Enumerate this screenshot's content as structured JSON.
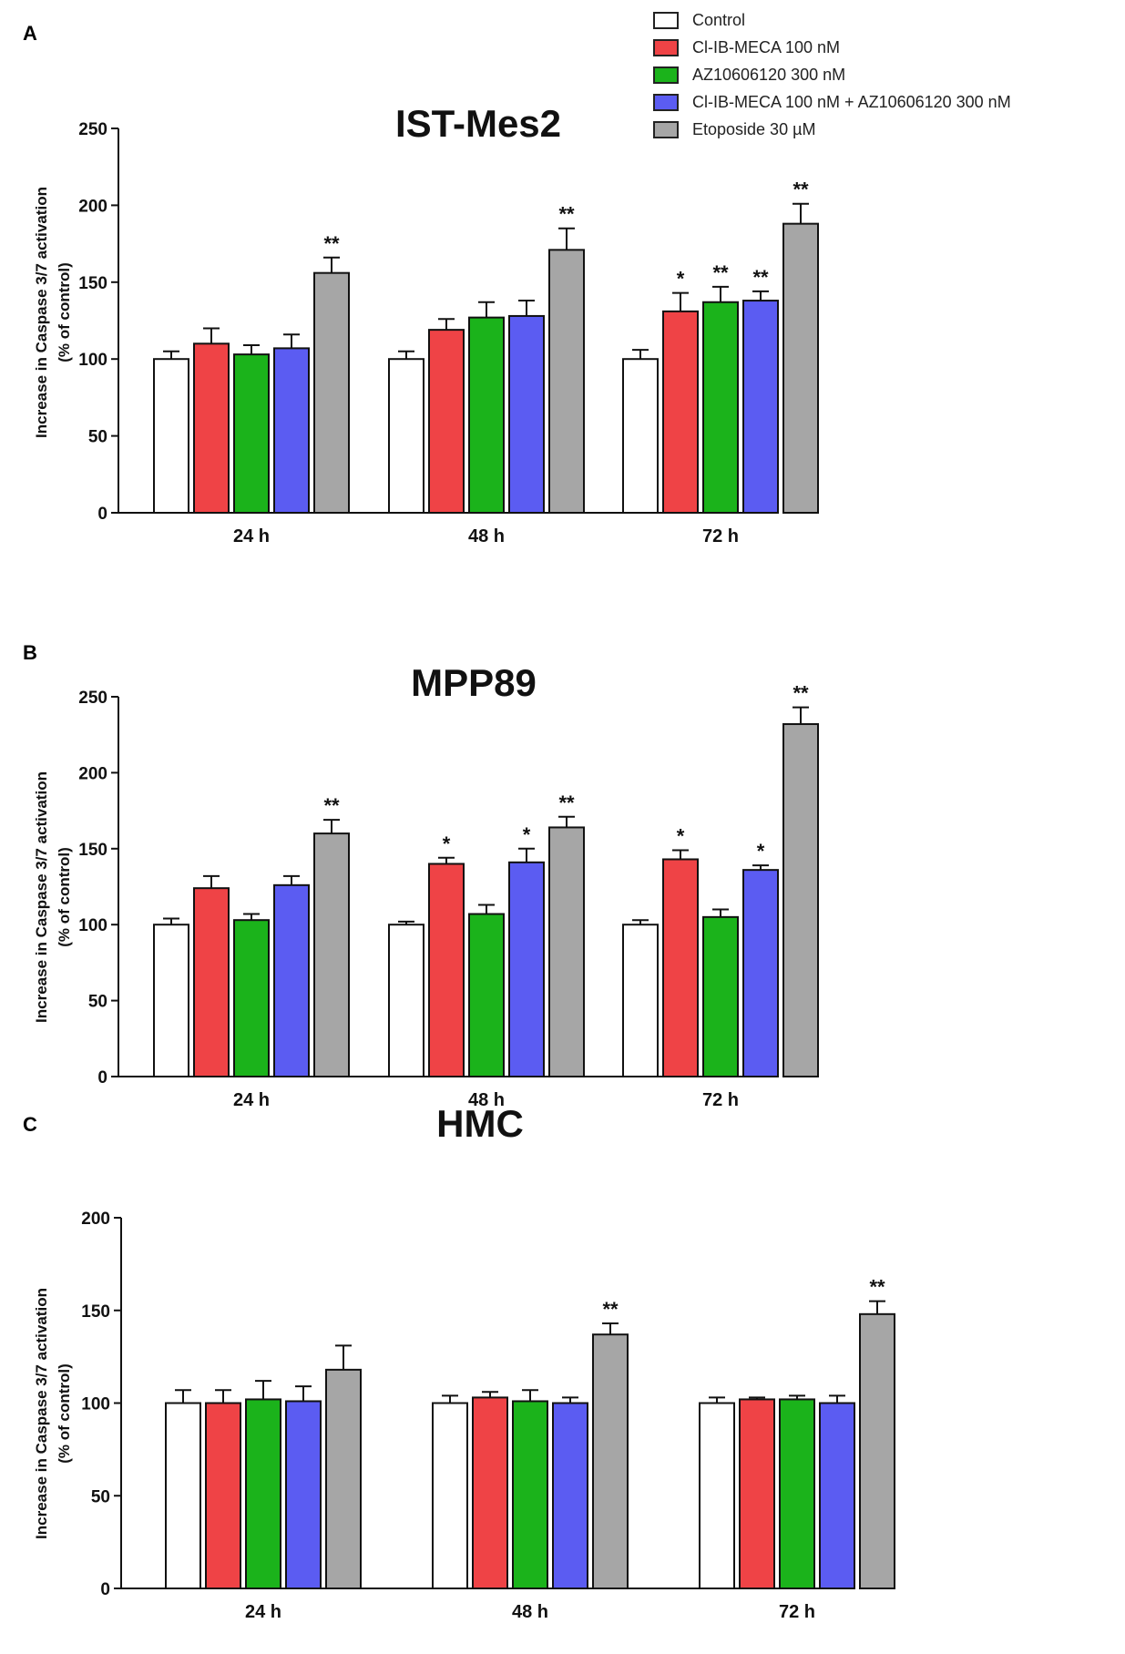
{
  "legend": {
    "entries": [
      {
        "label": "Control",
        "color": "#ffffff"
      },
      {
        "label": "Cl-IB-MECA 100 nM",
        "color": "#ef4346"
      },
      {
        "label": "AZ10606120 300 nM",
        "color": "#1bb31b"
      },
      {
        "label": "Cl-IB-MECA 100 nM + AZ10606120 300 nM",
        "color": "#5b5cf2"
      },
      {
        "label": "Etoposide 30 µM",
        "color": "#a6a6a6"
      }
    ]
  },
  "chart_data": [
    {
      "panel": "A",
      "type": "bar",
      "title": "IST-Mes2",
      "ylabel_line1": "Increase in Caspase 3/7 activation",
      "ylabel_line2": "(% of control)",
      "xlabel": "",
      "ylim": [
        0,
        250
      ],
      "yticks": [
        "0",
        "50",
        "100",
        "150",
        "200",
        "250"
      ],
      "categories": [
        "24 h",
        "48 h",
        "72 h"
      ],
      "series": [
        {
          "name": "Control",
          "values": [
            100,
            100,
            100
          ],
          "errors": [
            5,
            5,
            6
          ],
          "sig": [
            "",
            "",
            ""
          ]
        },
        {
          "name": "Cl-IB-MECA 100 nM",
          "values": [
            110,
            119,
            131
          ],
          "errors": [
            10,
            7,
            12
          ],
          "sig": [
            "",
            "",
            "*"
          ]
        },
        {
          "name": "AZ10606120 300 nM",
          "values": [
            103,
            127,
            137
          ],
          "errors": [
            6,
            10,
            10
          ],
          "sig": [
            "",
            "",
            "**"
          ]
        },
        {
          "name": "Cl-IB-MECA 100 nM + AZ10606120 300 nM",
          "values": [
            107,
            128,
            138
          ],
          "errors": [
            9,
            10,
            6
          ],
          "sig": [
            "",
            "",
            "**"
          ]
        },
        {
          "name": "Etoposide 30 µM",
          "values": [
            156,
            171,
            188
          ],
          "errors": [
            10,
            14,
            13
          ],
          "sig": [
            "**",
            "**",
            "**"
          ]
        }
      ]
    },
    {
      "panel": "B",
      "type": "bar",
      "title": "MPP89",
      "ylabel_line1": "Increase in Caspase 3/7 activation",
      "ylabel_line2": "(% of control)",
      "xlabel": "",
      "ylim": [
        0,
        250
      ],
      "yticks": [
        "0",
        "50",
        "100",
        "150",
        "200",
        "250"
      ],
      "categories": [
        "24 h",
        "48 h",
        "72 h"
      ],
      "series": [
        {
          "name": "Control",
          "values": [
            100,
            100,
            100
          ],
          "errors": [
            4,
            2,
            3
          ],
          "sig": [
            "",
            "",
            ""
          ]
        },
        {
          "name": "Cl-IB-MECA 100 nM",
          "values": [
            124,
            140,
            143
          ],
          "errors": [
            8,
            4,
            6
          ],
          "sig": [
            "",
            "*",
            "*"
          ]
        },
        {
          "name": "AZ10606120 300 nM",
          "values": [
            103,
            107,
            105
          ],
          "errors": [
            4,
            6,
            5
          ],
          "sig": [
            "",
            "",
            ""
          ]
        },
        {
          "name": "Cl-IB-MECA 100 nM + AZ10606120 300 nM",
          "values": [
            126,
            141,
            136
          ],
          "errors": [
            6,
            9,
            3
          ],
          "sig": [
            "",
            "*",
            "*"
          ]
        },
        {
          "name": "Etoposide 30 µM",
          "values": [
            160,
            164,
            232
          ],
          "errors": [
            9,
            7,
            11
          ],
          "sig": [
            "**",
            "**",
            "**"
          ]
        }
      ]
    },
    {
      "panel": "C",
      "type": "bar",
      "title": "HMC",
      "ylabel_line1": "Increase in Caspase 3/7 activation",
      "ylabel_line2": "(% of control)",
      "xlabel": "",
      "ylim": [
        0,
        200
      ],
      "yticks": [
        "0",
        "50",
        "100",
        "150",
        "200"
      ],
      "categories": [
        "24 h",
        "48 h",
        "72 h"
      ],
      "series": [
        {
          "name": "Control",
          "values": [
            100,
            100,
            100
          ],
          "errors": [
            7,
            4,
            3
          ],
          "sig": [
            "",
            "",
            ""
          ]
        },
        {
          "name": "Cl-IB-MECA 100 nM",
          "values": [
            100,
            103,
            102
          ],
          "errors": [
            7,
            3,
            1
          ],
          "sig": [
            "",
            "",
            ""
          ]
        },
        {
          "name": "AZ10606120 300 nM",
          "values": [
            102,
            101,
            102
          ],
          "errors": [
            10,
            6,
            2
          ],
          "sig": [
            "",
            "",
            ""
          ]
        },
        {
          "name": "Cl-IB-MECA 100 nM + AZ10606120 300 nM",
          "values": [
            101,
            100,
            100
          ],
          "errors": [
            8,
            3,
            4
          ],
          "sig": [
            "",
            "",
            ""
          ]
        },
        {
          "name": "Etoposide 30 µM",
          "values": [
            118,
            137,
            148
          ],
          "errors": [
            13,
            6,
            7
          ],
          "sig": [
            "",
            "**",
            "**"
          ]
        }
      ]
    }
  ]
}
